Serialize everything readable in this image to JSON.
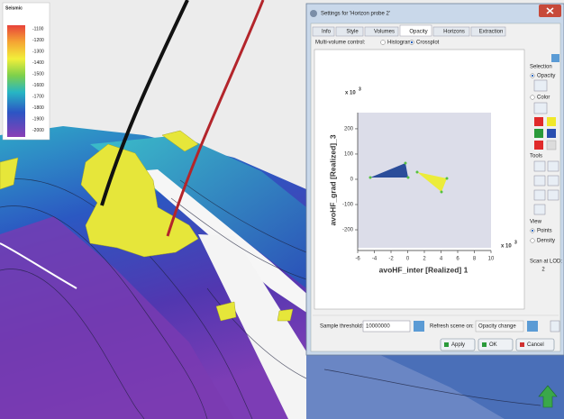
{
  "legend": {
    "title": "Seismic",
    "labels": [
      "-1100",
      "-1200",
      "-1300",
      "-1400",
      "-1500",
      "-1600",
      "-1700",
      "-1800",
      "-1900",
      "-2000"
    ]
  },
  "dialog": {
    "title": "Settings for 'Horizon probe 2'",
    "tabs": [
      "Info",
      "Style",
      "Volumes",
      "Opacity",
      "Horizons",
      "Extraction"
    ],
    "multi_volume_label": "Multi-volume control:",
    "options": [
      "Histogram",
      "Crossplot"
    ],
    "crossplot": {
      "y_label": "avoHF_grad [Realized]_3",
      "x_label": "avoHF_inter [Realized] 1",
      "multiplier": "x 10",
      "exponent": "3",
      "xlim": [
        -6,
        10
      ],
      "ylim": [
        -282,
        264
      ],
      "xticks": [
        -6,
        -4,
        -2,
        0,
        2,
        4,
        6,
        8,
        10
      ],
      "yticks": [
        200,
        100,
        0,
        -100,
        -200
      ]
    },
    "side_panel": {
      "selection": "Selection",
      "opacity": "Opacity",
      "color": "Color",
      "tools": "Tools",
      "view": "View",
      "points": "Points",
      "density": "Density",
      "scan_label": "Scan at LOD:",
      "scan_value": "2"
    },
    "footer": {
      "threshold_label": "Sample threshold:",
      "threshold_value": "10000000",
      "refresh_label": "Refresh scene on:",
      "refresh_value": "Opacity change"
    },
    "buttons": [
      "Apply",
      "OK",
      "Cancel"
    ]
  }
}
